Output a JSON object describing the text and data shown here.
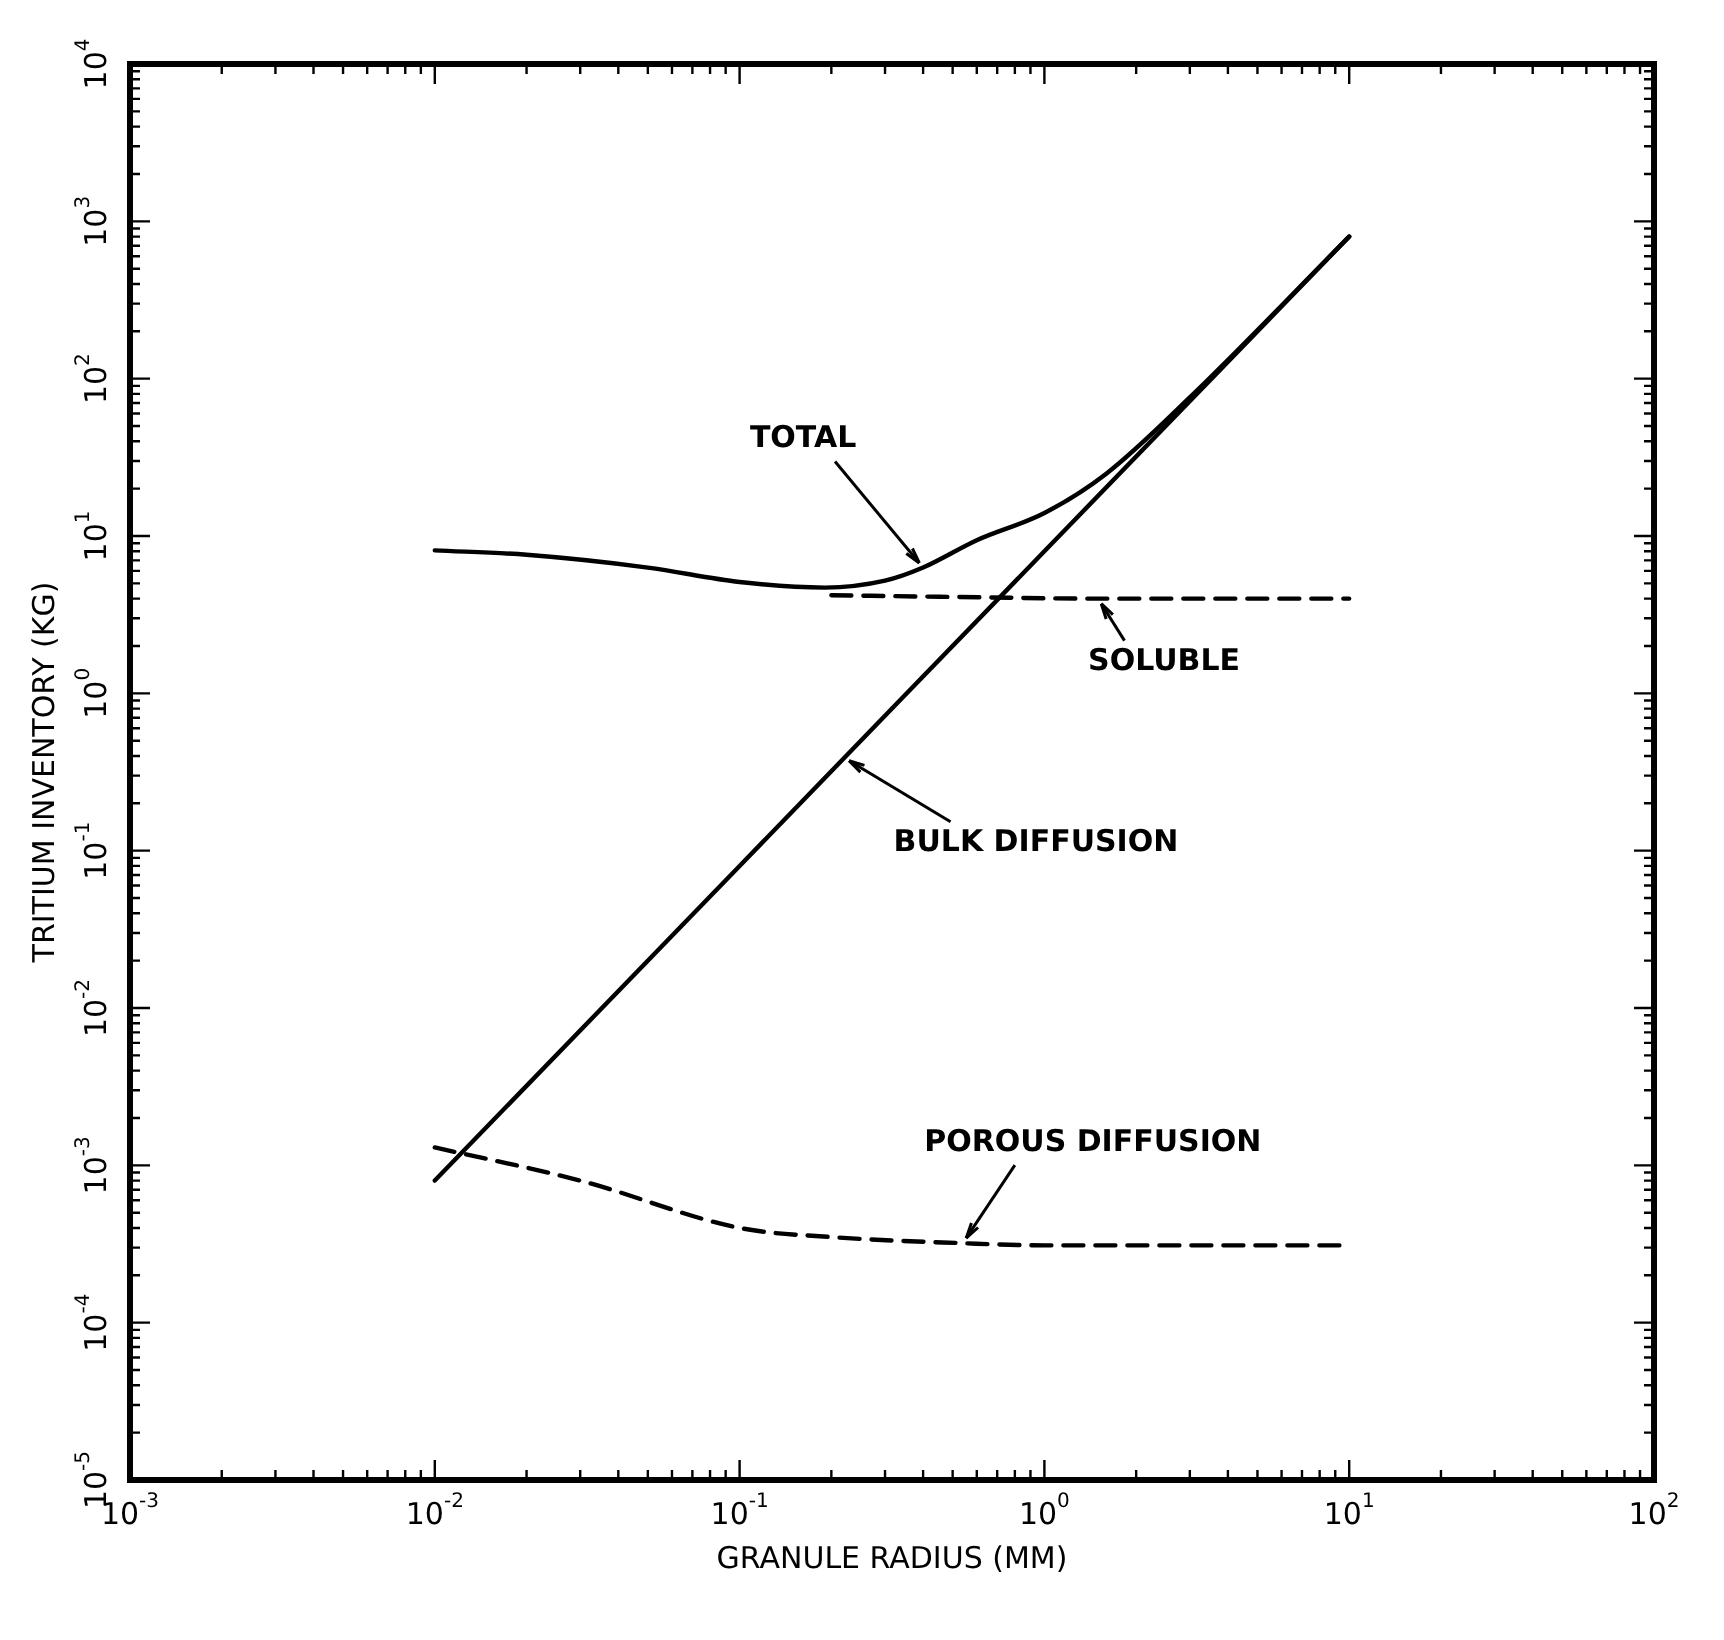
{
  "chart_data": {
    "type": "line",
    "xlabel": "GRANULE RADIUS (MM)",
    "ylabel": "TRITIUM INVENTORY (KG)",
    "log": "xy",
    "grid": false,
    "legend": false,
    "marker": "none",
    "xlim": [
      0.001,
      100
    ],
    "ylim": [
      1e-05,
      10000
    ],
    "xticks": [
      {
        "value": 0.001,
        "label": "10$^{-3}$"
      },
      {
        "value": 0.01,
        "label": "10$^{-2}$"
      },
      {
        "value": 0.1,
        "label": "10$^{-1}$"
      },
      {
        "value": 1,
        "label": "10$^{0}$"
      },
      {
        "value": 10,
        "label": "10$^{1}$"
      },
      {
        "value": 100,
        "label": "10$^{2}$"
      }
    ],
    "yticks": [
      {
        "value": 1e-05,
        "label": "10$^{-5}$"
      },
      {
        "value": 0.0001,
        "label": "10$^{-4}$"
      },
      {
        "value": 0.001,
        "label": "10$^{-3}$"
      },
      {
        "value": 0.01,
        "label": "10$^{-2}$"
      },
      {
        "value": 0.1,
        "label": "10$^{-1}$"
      },
      {
        "value": 1,
        "label": "10$^{0}$"
      },
      {
        "value": 10,
        "label": "10$^{1}$"
      },
      {
        "value": 100,
        "label": "10$^{2}$"
      },
      {
        "value": 1000,
        "label": "10$^{3}$"
      },
      {
        "value": 10000,
        "label": "10$^{4}$"
      }
    ],
    "series": [
      {
        "color": "#000000",
        "line_style": "solid",
        "x": [
          0.01,
          0.02,
          0.05,
          0.1,
          0.19,
          0.3,
          0.4,
          0.6,
          1,
          1.6,
          3,
          10
        ],
        "values": [
          8.1,
          7.6,
          6.3,
          5.1,
          4.7,
          5.2,
          6.3,
          9.4,
          14,
          25,
          76,
          800
        ]
      },
      {
        "color": "#000000",
        "line_style": "dashed",
        "x": [
          0.2,
          0.5,
          1.5,
          10
        ],
        "values": [
          4.2,
          4.1,
          4,
          4
        ]
      },
      {
        "color": "#000000",
        "line_style": "solid",
        "x": [
          0.01,
          0.1,
          1,
          10
        ],
        "values": [
          0.0008,
          0.08,
          8,
          800
        ]
      },
      {
        "color": "#000000",
        "line_style": "dashed",
        "x": [
          0.01,
          0.03,
          0.1,
          0.2,
          0.54,
          1,
          10
        ],
        "values": [
          0.0013,
          0.0008,
          0.0004,
          0.00035,
          0.00032,
          0.00031,
          0.00031
        ]
      }
    ],
    "annotations": [
      {
        "text": "TOTAL",
        "x": 0.4,
        "y": 6.3
      },
      {
        "text": "SOLUBLE",
        "x": 1.5,
        "y": 4
      },
      {
        "text": "BULK DIFFUSION",
        "x": 0.22,
        "y": 0.39
      },
      {
        "text": "POROUS DIFFUSION",
        "x": 0.54,
        "y": 0.00032
      }
    ]
  }
}
